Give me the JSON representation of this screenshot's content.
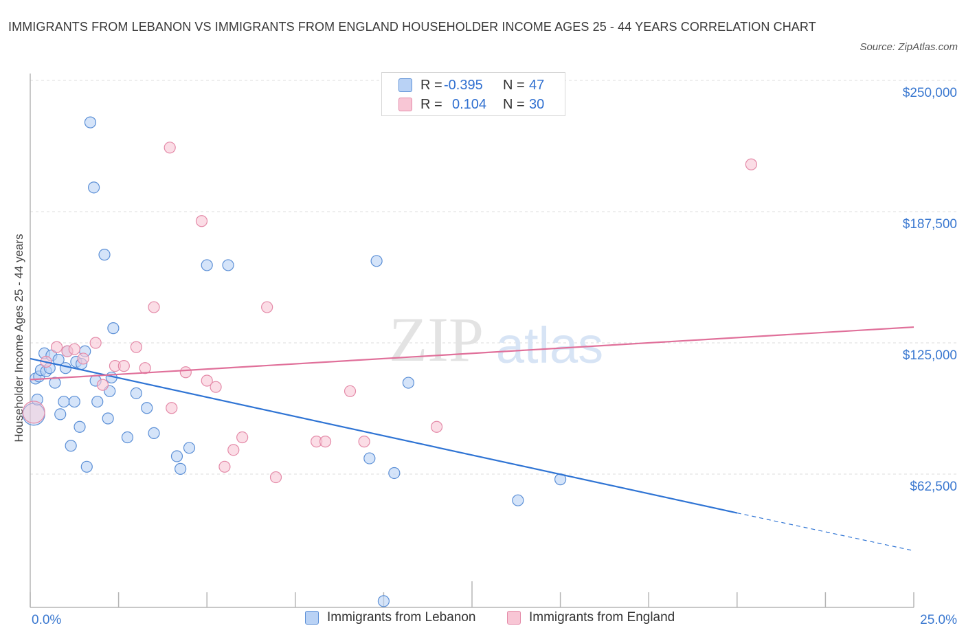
{
  "title": "IMMIGRANTS FROM LEBANON VS IMMIGRANTS FROM ENGLAND HOUSEHOLDER INCOME AGES 25 - 44 YEARS CORRELATION CHART",
  "source": "Source: ZipAtlas.com",
  "watermark": {
    "zip": "ZIP",
    "atlas": "atlas"
  },
  "legend": {
    "rows": [
      {
        "r_label": "R =",
        "r_value": "-0.395",
        "n_label": "N =",
        "n_value": "47"
      },
      {
        "r_label": "R =",
        "r_value": "0.104",
        "n_label": "N =",
        "n_value": "30"
      }
    ]
  },
  "colors": {
    "lebanon_fill": "#b9d2f5",
    "lebanon_stroke": "#5b8fd6",
    "lebanon_line": "#2f74d4",
    "england_fill": "#f8c6d5",
    "england_stroke": "#e48aa8",
    "england_line": "#e0709a",
    "tick_label": "#3a78d0",
    "grid": "#dcdcdc"
  },
  "chart_data": {
    "type": "scatter",
    "title": "IMMIGRANTS FROM LEBANON VS IMMIGRANTS FROM ENGLAND HOUSEHOLDER INCOME AGES 25 - 44 YEARS CORRELATION CHART",
    "xlabel": "",
    "ylabel": "Householder Income Ages 25 - 44 years",
    "xlim": [
      0,
      25
    ],
    "ylim": [
      0,
      250000
    ],
    "x_tick_labels": [
      "0.0%",
      "25.0%"
    ],
    "y_ticks": [
      62500,
      125000,
      187500,
      250000
    ],
    "y_tick_labels": [
      "$62,500",
      "$125,000",
      "$187,500",
      "$250,000"
    ],
    "grid": "horizontal dashed",
    "legend_position": "top-center and bottom",
    "series": [
      {
        "name": "Immigrants from Lebanon",
        "r": -0.395,
        "n": 47,
        "trend": {
          "x0": 0.0,
          "y0": 117500,
          "x1": 20.0,
          "y1": 44000,
          "dash_to_x": 25.0,
          "dash_to_y": 26000
        },
        "points": [
          [
            0.1,
            91000
          ],
          [
            0.15,
            108000
          ],
          [
            0.25,
            109000
          ],
          [
            0.3,
            112000
          ],
          [
            0.45,
            111500
          ],
          [
            0.4,
            120000
          ],
          [
            0.55,
            113000
          ],
          [
            0.6,
            119000
          ],
          [
            0.7,
            106000
          ],
          [
            0.8,
            117000
          ],
          [
            0.85,
            91000
          ],
          [
            0.95,
            97000
          ],
          [
            1.0,
            113000
          ],
          [
            1.05,
            121000
          ],
          [
            1.15,
            76000
          ],
          [
            1.25,
            97000
          ],
          [
            1.3,
            116000
          ],
          [
            1.4,
            85000
          ],
          [
            1.45,
            115000
          ],
          [
            1.55,
            121000
          ],
          [
            1.6,
            66000
          ],
          [
            1.7,
            230000
          ],
          [
            1.8,
            199000
          ],
          [
            1.85,
            107000
          ],
          [
            1.9,
            97000
          ],
          [
            2.1,
            167000
          ],
          [
            2.2,
            89000
          ],
          [
            2.25,
            102000
          ],
          [
            2.3,
            108500
          ],
          [
            2.35,
            132000
          ],
          [
            2.75,
            80000
          ],
          [
            3.0,
            101000
          ],
          [
            3.3,
            94000
          ],
          [
            3.5,
            82000
          ],
          [
            4.15,
            71000
          ],
          [
            4.25,
            65000
          ],
          [
            4.5,
            75000
          ],
          [
            5.0,
            162000
          ],
          [
            5.6,
            162000
          ],
          [
            9.6,
            70000
          ],
          [
            9.8,
            164000
          ],
          [
            10.3,
            63000
          ],
          [
            10.7,
            106000
          ],
          [
            13.8,
            50000
          ],
          [
            15.0,
            60000
          ],
          [
            0.2,
            98000
          ],
          [
            10.0,
            2000
          ]
        ]
      },
      {
        "name": "Immigrants from England",
        "r": 0.104,
        "n": 30,
        "trend": {
          "x0": 0.0,
          "y0": 107500,
          "x1": 25.0,
          "y1": 132500
        },
        "points": [
          [
            0.1,
            92000
          ],
          [
            0.45,
            116000
          ],
          [
            0.75,
            123000
          ],
          [
            1.05,
            121000
          ],
          [
            1.25,
            122000
          ],
          [
            1.5,
            117500
          ],
          [
            1.85,
            125000
          ],
          [
            2.05,
            105000
          ],
          [
            2.4,
            114000
          ],
          [
            2.65,
            114000
          ],
          [
            3.0,
            123000
          ],
          [
            3.25,
            113000
          ],
          [
            3.5,
            142000
          ],
          [
            3.95,
            218000
          ],
          [
            4.0,
            94000
          ],
          [
            4.4,
            111000
          ],
          [
            4.85,
            183000
          ],
          [
            5.0,
            107000
          ],
          [
            5.25,
            104000
          ],
          [
            5.5,
            66000
          ],
          [
            5.75,
            74000
          ],
          [
            6.0,
            80000
          ],
          [
            6.7,
            142000
          ],
          [
            6.95,
            61000
          ],
          [
            8.1,
            78000
          ],
          [
            8.35,
            78000
          ],
          [
            9.05,
            102000
          ],
          [
            9.45,
            78000
          ],
          [
            11.5,
            85000
          ],
          [
            20.4,
            210000
          ]
        ]
      }
    ]
  },
  "bottom_legend": {
    "lebanon": "Immigrants from Lebanon",
    "england": "Immigrants from England"
  }
}
